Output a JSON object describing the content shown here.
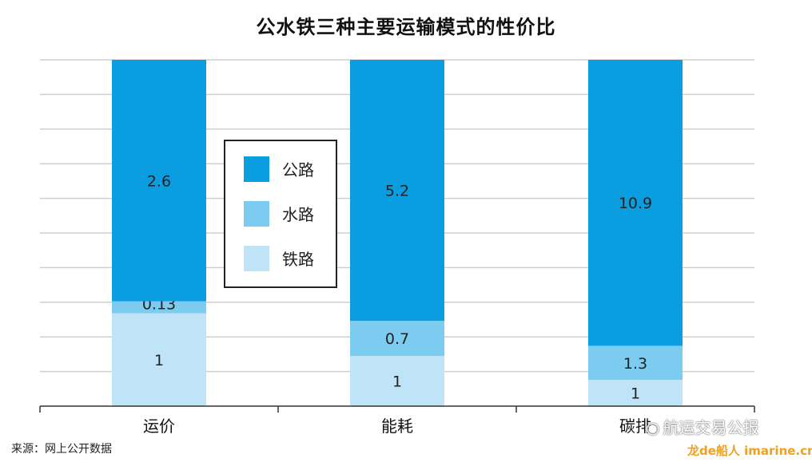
{
  "title": "公水铁三种主要运输模式的性价比",
  "source": "来源：网上公开数据",
  "watermark": "航运交易公报",
  "watermark2": "龙de船人 imarine.cn",
  "chart_data": {
    "type": "bar",
    "stacked": true,
    "categories": [
      "运价",
      "能耗",
      "碳排放"
    ],
    "category_labels_visible": [
      "运价",
      "能耗",
      "碳排"
    ],
    "series": [
      {
        "name": "铁路",
        "values": [
          1,
          1,
          1
        ],
        "color": "#bfe4f7"
      },
      {
        "name": "水路",
        "values": [
          0.13,
          0.7,
          1.3
        ],
        "color": "#7ccbf0"
      },
      {
        "name": "公路",
        "values": [
          2.6,
          5.2,
          10.9
        ],
        "color": "#0a9ee0"
      }
    ],
    "data_labels": [
      [
        "1",
        "1",
        "1"
      ],
      [
        "0.13",
        "0.7",
        "1.3"
      ],
      [
        "2.6",
        "5.2",
        "10.9"
      ]
    ],
    "legend_order": [
      "公路",
      "水路",
      "铁路"
    ],
    "legend_position": "center-left",
    "note": "bars normalized to equal total height per category",
    "grid": true
  }
}
